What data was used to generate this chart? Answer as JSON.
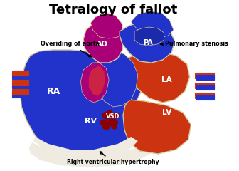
{
  "title": "Tetralogy of fallot",
  "title_fontsize": 13,
  "bg_color": "#ffffff",
  "label_ao": "AO",
  "label_pa": "PA",
  "label_ra": "RA",
  "label_rv": "RV",
  "label_la": "LA",
  "label_lv": "LV",
  "label_vsd": "VSD",
  "annot_aorta": "Overiding of aorta",
  "annot_pulm": "Pulmonary stenosis",
  "annot_rvh": "Right ventricular hypertrophy",
  "color_blue": "#2233cc",
  "color_red": "#cc3311",
  "color_magenta": "#aa0077",
  "color_cream": "#f0ebe0",
  "color_dark_red": "#8b0000",
  "color_white": "#ffffff",
  "color_outline": "#d4c89a"
}
